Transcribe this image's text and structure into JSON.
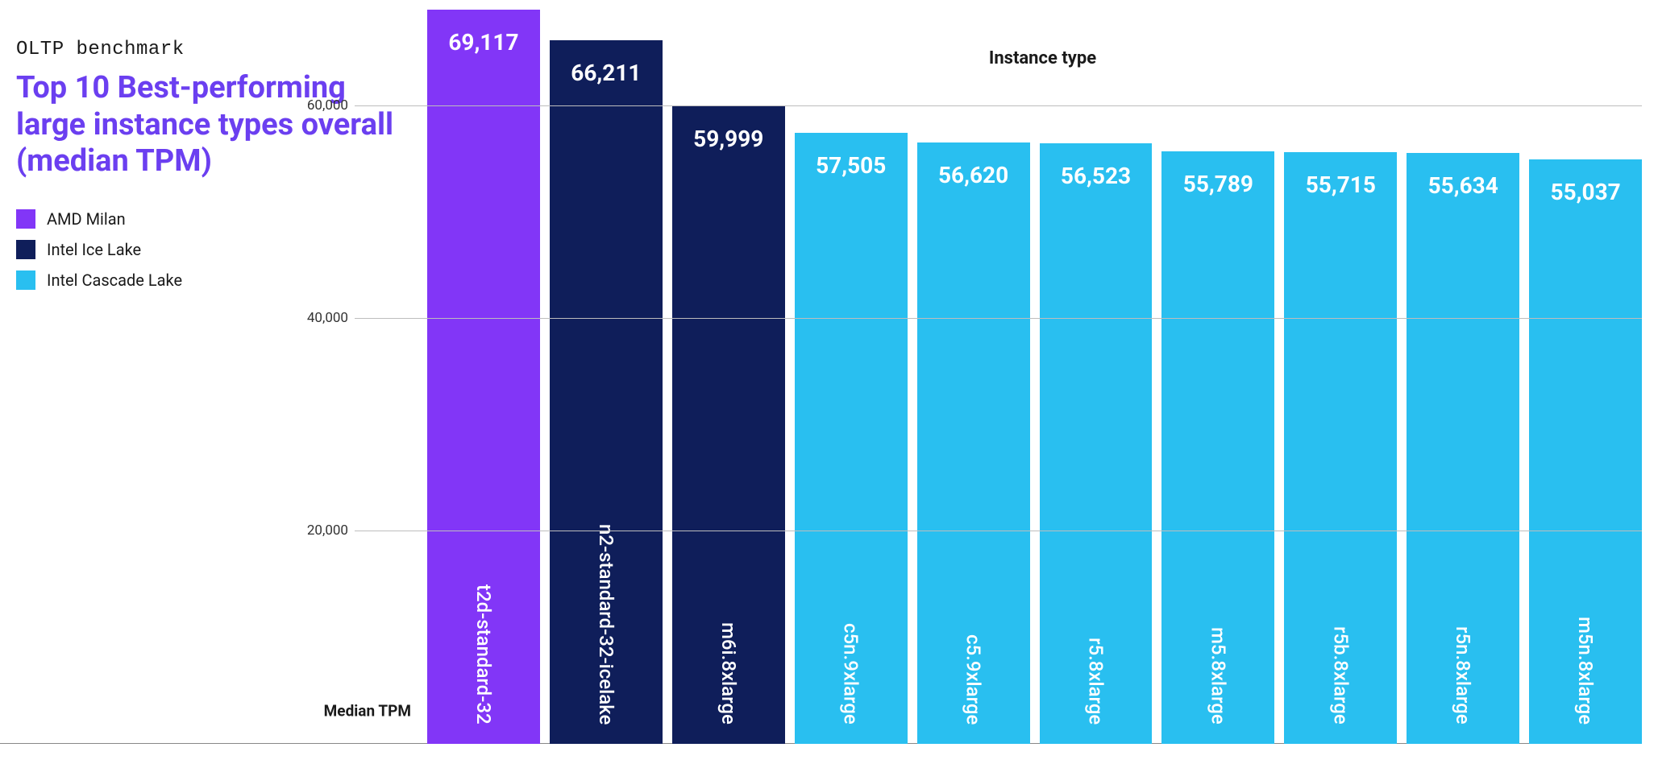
{
  "supertitle": "OLTP benchmark",
  "title": "Top 10 Best-performing large instance types overall (median TPM)",
  "title_color": "#6b3ff0",
  "legend": [
    {
      "label": "AMD Milan",
      "color": "#8236f7"
    },
    {
      "label": "Intel Ice Lake",
      "color": "#0f1e5a"
    },
    {
      "label": "Intel Cascade Lake",
      "color": "#29bff0"
    }
  ],
  "chart": {
    "type": "bar",
    "title": "Instance type",
    "y_axis_label": "Median TPM",
    "y_max": 70000,
    "y_ticks": [
      {
        "value": 20000,
        "label": "20,000"
      },
      {
        "value": 40000,
        "label": "40,000"
      },
      {
        "value": 60000,
        "label": "60,000"
      }
    ],
    "grid_color": "#bdbdbd",
    "baseline_color": "#888888",
    "background_color": "#ffffff",
    "value_text_color": "#ffffff",
    "name_text_color": "#ffffff",
    "value_fontsize": 28,
    "name_fontsize": 24,
    "bars": [
      {
        "name": "t2d-standard-32",
        "value": 69117,
        "value_label": "69,117",
        "color": "#8236f7"
      },
      {
        "name": "n2-standard-32-icelake",
        "value": 66211,
        "value_label": "66,211",
        "color": "#0f1e5a"
      },
      {
        "name": "m6i.8xlarge",
        "value": 59999,
        "value_label": "59,999",
        "color": "#0f1e5a"
      },
      {
        "name": "c5n.9xlarge",
        "value": 57505,
        "value_label": "57,505",
        "color": "#29bff0"
      },
      {
        "name": "c5.9xlarge",
        "value": 56620,
        "value_label": "56,620",
        "color": "#29bff0"
      },
      {
        "name": "r5.8xlarge",
        "value": 56523,
        "value_label": "56,523",
        "color": "#29bff0"
      },
      {
        "name": "m5.8xlarge",
        "value": 55789,
        "value_label": "55,789",
        "color": "#29bff0"
      },
      {
        "name": "r5b.8xlarge",
        "value": 55715,
        "value_label": "55,715",
        "color": "#29bff0"
      },
      {
        "name": "r5n.8xlarge",
        "value": 55634,
        "value_label": "55,634",
        "color": "#29bff0"
      },
      {
        "name": "m5n.8xlarge",
        "value": 55037,
        "value_label": "55,037",
        "color": "#29bff0"
      }
    ]
  }
}
